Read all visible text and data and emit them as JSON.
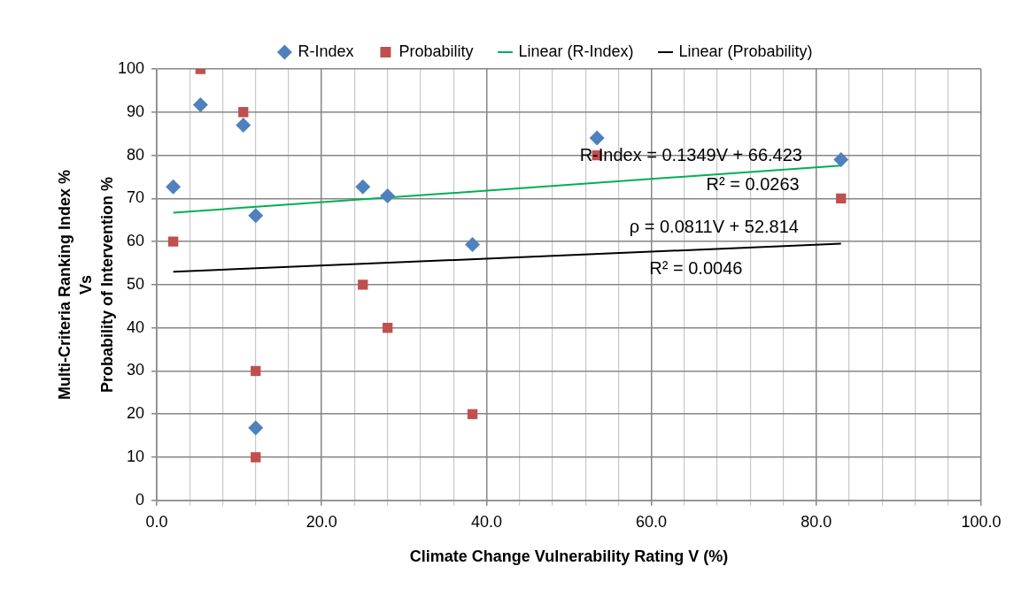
{
  "chart_data": {
    "type": "scatter",
    "xlabel": "Climate Change Vulnerability Rating V (%)",
    "ylabel": "Multi-Criteria Ranking Index %\nVs\nProbability of Intervention %",
    "xlim": [
      0,
      100
    ],
    "xticks": [
      {
        "value": 0,
        "label": "0.0"
      },
      {
        "value": 4,
        "label": null
      },
      {
        "value": 8,
        "label": null
      },
      {
        "value": 12,
        "label": null
      },
      {
        "value": 16,
        "label": null
      },
      {
        "value": 20,
        "label": "20.0"
      },
      {
        "value": 24,
        "label": null
      },
      {
        "value": 28,
        "label": null
      },
      {
        "value": 32,
        "label": null
      },
      {
        "value": 36,
        "label": null
      },
      {
        "value": 40,
        "label": "40.0"
      },
      {
        "value": 44,
        "label": null
      },
      {
        "value": 48,
        "label": null
      },
      {
        "value": 52,
        "label": null
      },
      {
        "value": 56,
        "label": null
      },
      {
        "value": 60,
        "label": "60.0"
      },
      {
        "value": 64,
        "label": null
      },
      {
        "value": 68,
        "label": null
      },
      {
        "value": 72,
        "label": null
      },
      {
        "value": 76,
        "label": null
      },
      {
        "value": 80,
        "label": "80.0"
      },
      {
        "value": 84,
        "label": null
      },
      {
        "value": 88,
        "label": null
      },
      {
        "value": 92,
        "label": null
      },
      {
        "value": 96,
        "label": null
      },
      {
        "value": 100,
        "label": "100.0"
      }
    ],
    "ylim": [
      0,
      100
    ],
    "yticks": [
      0,
      10,
      20,
      30,
      40,
      50,
      60,
      70,
      80,
      90,
      100
    ],
    "grid": true,
    "legend": "top",
    "series": [
      {
        "name": "R-Index",
        "type": "scatter",
        "marker": "diamond",
        "color": "#4f81bd",
        "x": [
          5.3,
          10.5,
          2.0,
          12.0,
          25.0,
          28.0,
          38.3,
          12.0,
          53.4,
          83.0
        ],
        "values": [
          91.7,
          87,
          72.7,
          66,
          72.7,
          70.6,
          59.3,
          16.8,
          84,
          79
        ]
      },
      {
        "name": "Probability",
        "type": "scatter",
        "marker": "square",
        "color": "#c0504d",
        "x": [
          5.3,
          10.5,
          2.0,
          25.0,
          28.0,
          12.0,
          12.0,
          38.3,
          53.4,
          83.0
        ],
        "values": [
          100,
          90,
          60,
          50,
          40,
          30,
          10,
          20,
          80,
          70
        ]
      },
      {
        "name": "Linear (R-Index)",
        "type": "line",
        "marker": "none",
        "color": "#00b050",
        "x": [
          2.0,
          83.0
        ],
        "values": [
          66.7,
          77.6
        ]
      },
      {
        "name": "Linear (Probability)",
        "type": "line",
        "marker": "none",
        "color": "#000000",
        "x": [
          2.0,
          83.0
        ],
        "values": [
          53.0,
          59.5
        ]
      }
    ],
    "annotations": [
      "R-Index = 0.1349V + 66.423",
      "R² = 0.0263",
      "ρ = 0.0811V + 52.814",
      "R² = 0.0046"
    ]
  }
}
